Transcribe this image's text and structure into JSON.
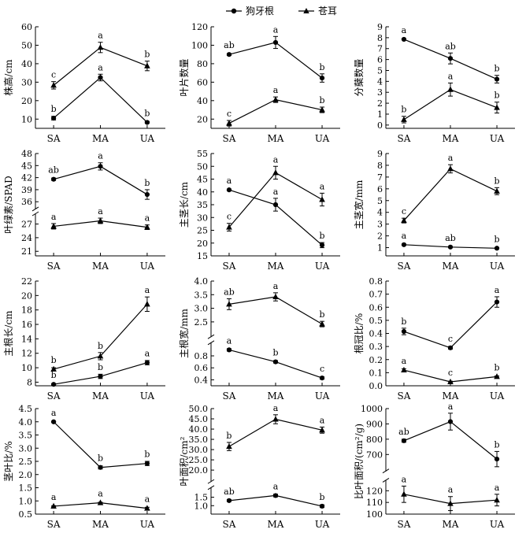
{
  "legend": {
    "position": "top-center"
  },
  "chart_data": [
    {
      "type": "line",
      "ylabel": "株高/cm",
      "categories": [
        "SA",
        "MA",
        "UA"
      ],
      "ylim": [
        5,
        60
      ],
      "yticks": [
        10,
        20,
        30,
        40,
        50,
        60
      ],
      "series": [
        {
          "name": "狗牙根",
          "values": [
            10.5,
            32.5,
            8.2
          ],
          "err": [
            1,
            1.8,
            0.5
          ],
          "labels": [
            "b",
            "a",
            "b"
          ]
        },
        {
          "name": "苍耳",
          "values": [
            28.3,
            48.8,
            38.8
          ],
          "err": [
            2,
            2.8,
            2.6
          ],
          "labels": [
            "c",
            "a",
            "b"
          ]
        }
      ]
    },
    {
      "type": "line",
      "ylabel": "叶片数量",
      "categories": [
        "SA",
        "MA",
        "UA"
      ],
      "ylim": [
        10,
        120
      ],
      "yticks": [
        20,
        40,
        60,
        80,
        100,
        120
      ],
      "series": [
        {
          "name": "狗牙根",
          "values": [
            90,
            103,
            64.5
          ],
          "err": [
            1,
            6.5,
            4.5
          ],
          "labels": [
            "ab",
            "a",
            "b"
          ]
        },
        {
          "name": "苍耳",
          "values": [
            15.5,
            41,
            30
          ],
          "err": [
            3,
            3,
            3
          ],
          "labels": [
            "c",
            "a",
            "b"
          ]
        }
      ]
    },
    {
      "type": "line",
      "ylabel": "分蘖数量",
      "categories": [
        "SA",
        "MA",
        "UA"
      ],
      "ylim": [
        -0.3,
        9
      ],
      "yticks": [
        0,
        1,
        2,
        3,
        4,
        5,
        6,
        7,
        8,
        9
      ],
      "series": [
        {
          "name": "狗牙根",
          "values": [
            7.85,
            6.1,
            4.2
          ],
          "err": [
            0.05,
            0.5,
            0.35
          ],
          "labels": [
            "a",
            "ab",
            "b"
          ]
        },
        {
          "name": "苍耳",
          "values": [
            0.5,
            3.25,
            1.6
          ],
          "err": [
            0.3,
            0.6,
            0.5
          ],
          "labels": [
            "b",
            "a",
            "b"
          ]
        }
      ]
    },
    {
      "type": "line",
      "ylabel": "叶绿素/SPAD",
      "categories": [
        "SA",
        "MA",
        "UA"
      ],
      "ylim": [
        20,
        48
      ],
      "yticks": [
        21,
        24,
        27,
        36,
        39,
        42,
        45,
        48
      ],
      "break_at": 31.5,
      "series": [
        {
          "name": "狗牙根",
          "values": [
            41.6,
            44.8,
            37.8
          ],
          "err": [
            0.3,
            0.9,
            1.2
          ],
          "labels": [
            "ab",
            "a",
            "b"
          ]
        },
        {
          "name": "苍耳",
          "values": [
            26.5,
            27.7,
            26.3
          ],
          "err": [
            0.6,
            0.6,
            0.5
          ],
          "labels": [
            "a",
            "a",
            "a"
          ]
        }
      ]
    },
    {
      "type": "line",
      "ylabel": "主茎长/cm",
      "categories": [
        "SA",
        "MA",
        "UA"
      ],
      "ylim": [
        15,
        55
      ],
      "yticks": [
        15,
        20,
        25,
        30,
        35,
        40,
        45,
        50,
        55
      ],
      "series": [
        {
          "name": "狗牙根",
          "values": [
            40.8,
            35,
            19.2
          ],
          "err": [
            0.3,
            2.5,
            1
          ],
          "labels": [
            "a",
            "a",
            "b"
          ]
        },
        {
          "name": "苍耳",
          "values": [
            26.2,
            47.5,
            37
          ],
          "err": [
            1.5,
            2.5,
            2.5
          ],
          "labels": [
            "c",
            "a",
            "a"
          ]
        }
      ]
    },
    {
      "type": "line",
      "ylabel": "主茎宽/mm",
      "categories": [
        "SA",
        "MA",
        "UA"
      ],
      "ylim": [
        0.3,
        9
      ],
      "yticks": [
        1,
        2,
        3,
        4,
        5,
        6,
        7,
        8,
        9
      ],
      "series": [
        {
          "name": "狗牙根",
          "values": [
            1.25,
            1.05,
            0.95
          ],
          "err": [
            0.05,
            0.05,
            0.05
          ],
          "labels": [
            "a",
            "ab",
            "b"
          ]
        },
        {
          "name": "苍耳",
          "values": [
            3.3,
            7.7,
            5.8
          ],
          "err": [
            0.2,
            0.35,
            0.3
          ],
          "labels": [
            "c",
            "a",
            "b"
          ]
        }
      ]
    },
    {
      "type": "line",
      "ylabel": "主根长/cm",
      "categories": [
        "SA",
        "MA",
        "UA"
      ],
      "ylim": [
        7.5,
        22
      ],
      "yticks": [
        8,
        10,
        12,
        14,
        16,
        18,
        20,
        22
      ],
      "series": [
        {
          "name": "狗牙根",
          "values": [
            7.7,
            8.8,
            10.7
          ],
          "err": [
            0.1,
            0.3,
            0.3
          ],
          "labels": [
            "b",
            "b",
            "a"
          ]
        },
        {
          "name": "苍耳",
          "values": [
            9.8,
            11.6,
            18.8
          ],
          "err": [
            0.2,
            0.5,
            1
          ],
          "labels": [
            "b",
            "b",
            "a"
          ]
        }
      ]
    },
    {
      "type": "line",
      "ylabel": "主根宽/mm",
      "categories": [
        "SA",
        "MA",
        "UA"
      ],
      "ylim": [
        0.25,
        4.0
      ],
      "yticks": [
        0.4,
        0.6,
        0.8,
        2.5,
        3.0,
        3.5,
        4.0
      ],
      "break_at": 1.5,
      "series": [
        {
          "name": "狗牙根",
          "values": [
            0.9,
            0.7,
            0.43
          ],
          "err": [
            0.02,
            0.02,
            0.02
          ],
          "labels": [
            "a",
            "b",
            "c"
          ]
        },
        {
          "name": "苍耳",
          "values": [
            3.15,
            3.42,
            2.42
          ],
          "err": [
            0.2,
            0.15,
            0.1
          ],
          "labels": [
            "ab",
            "a",
            "b"
          ]
        }
      ]
    },
    {
      "type": "line",
      "ylabel": "根冠比/%",
      "categories": [
        "SA",
        "MA",
        "UA"
      ],
      "ylim": [
        0,
        0.8
      ],
      "yticks": [
        0,
        0.1,
        0.2,
        0.3,
        0.4,
        0.5,
        0.6,
        0.7,
        0.8
      ],
      "series": [
        {
          "name": "狗牙根",
          "values": [
            0.415,
            0.29,
            0.64
          ],
          "err": [
            0.025,
            0.01,
            0.04
          ],
          "labels": [
            "b",
            "c",
            "a"
          ]
        },
        {
          "name": "苍耳",
          "values": [
            0.12,
            0.03,
            0.07
          ],
          "err": [
            0.01,
            0.005,
            0.005
          ],
          "labels": [
            "a",
            "c",
            "b"
          ]
        }
      ]
    },
    {
      "type": "line",
      "ylabel": "茎叶比/%",
      "categories": [
        "SA",
        "MA",
        "UA"
      ],
      "ylim": [
        0.5,
        4.5
      ],
      "yticks": [
        0.5,
        1.0,
        1.5,
        2.0,
        2.5,
        3.0,
        3.5,
        4.0,
        4.5
      ],
      "series": [
        {
          "name": "狗牙根",
          "values": [
            4.0,
            2.27,
            2.42
          ],
          "err": [
            0.02,
            0.06,
            0.08
          ],
          "labels": [
            "a",
            "b",
            "b"
          ]
        },
        {
          "name": "苍耳",
          "values": [
            0.8,
            0.93,
            0.72
          ],
          "err": [
            0.02,
            0.02,
            0.04
          ],
          "labels": [
            "a",
            "a",
            "a"
          ]
        }
      ]
    },
    {
      "type": "line",
      "ylabel": "叶面积/cm²",
      "categories": [
        "SA",
        "MA",
        "UA"
      ],
      "ylim": [
        0.5,
        50
      ],
      "yticks": [
        1.0,
        1.5,
        20,
        25,
        30,
        35,
        40,
        45,
        50
      ],
      "break_at": 2,
      "series": [
        {
          "name": "狗牙根",
          "values": [
            1.3,
            1.6,
            0.97
          ],
          "err": [
            0.06,
            0.08,
            0.08
          ],
          "labels": [
            "ab",
            "a",
            "b"
          ]
        },
        {
          "name": "苍耳",
          "values": [
            31.5,
            44.8,
            39.5
          ],
          "err": [
            2,
            2.2,
            1.5
          ],
          "labels": [
            "b",
            "a",
            "a"
          ]
        }
      ]
    },
    {
      "type": "line",
      "ylabel": "比叶面积/(cm²/g)",
      "categories": [
        "SA",
        "MA",
        "UA"
      ],
      "ylim": [
        100,
        1000
      ],
      "yticks": [
        100,
        110,
        120,
        700,
        800,
        900,
        1000
      ],
      "break_at": 130,
      "series": [
        {
          "name": "狗牙根",
          "values": [
            790,
            915,
            670
          ],
          "err": [
            10,
            55,
            50
          ],
          "labels": [
            "ab",
            "a",
            "b"
          ]
        },
        {
          "name": "苍耳",
          "values": [
            117,
            109,
            112
          ],
          "err": [
            7,
            6,
            5
          ],
          "labels": [
            "a",
            "a",
            "a"
          ]
        }
      ]
    }
  ]
}
